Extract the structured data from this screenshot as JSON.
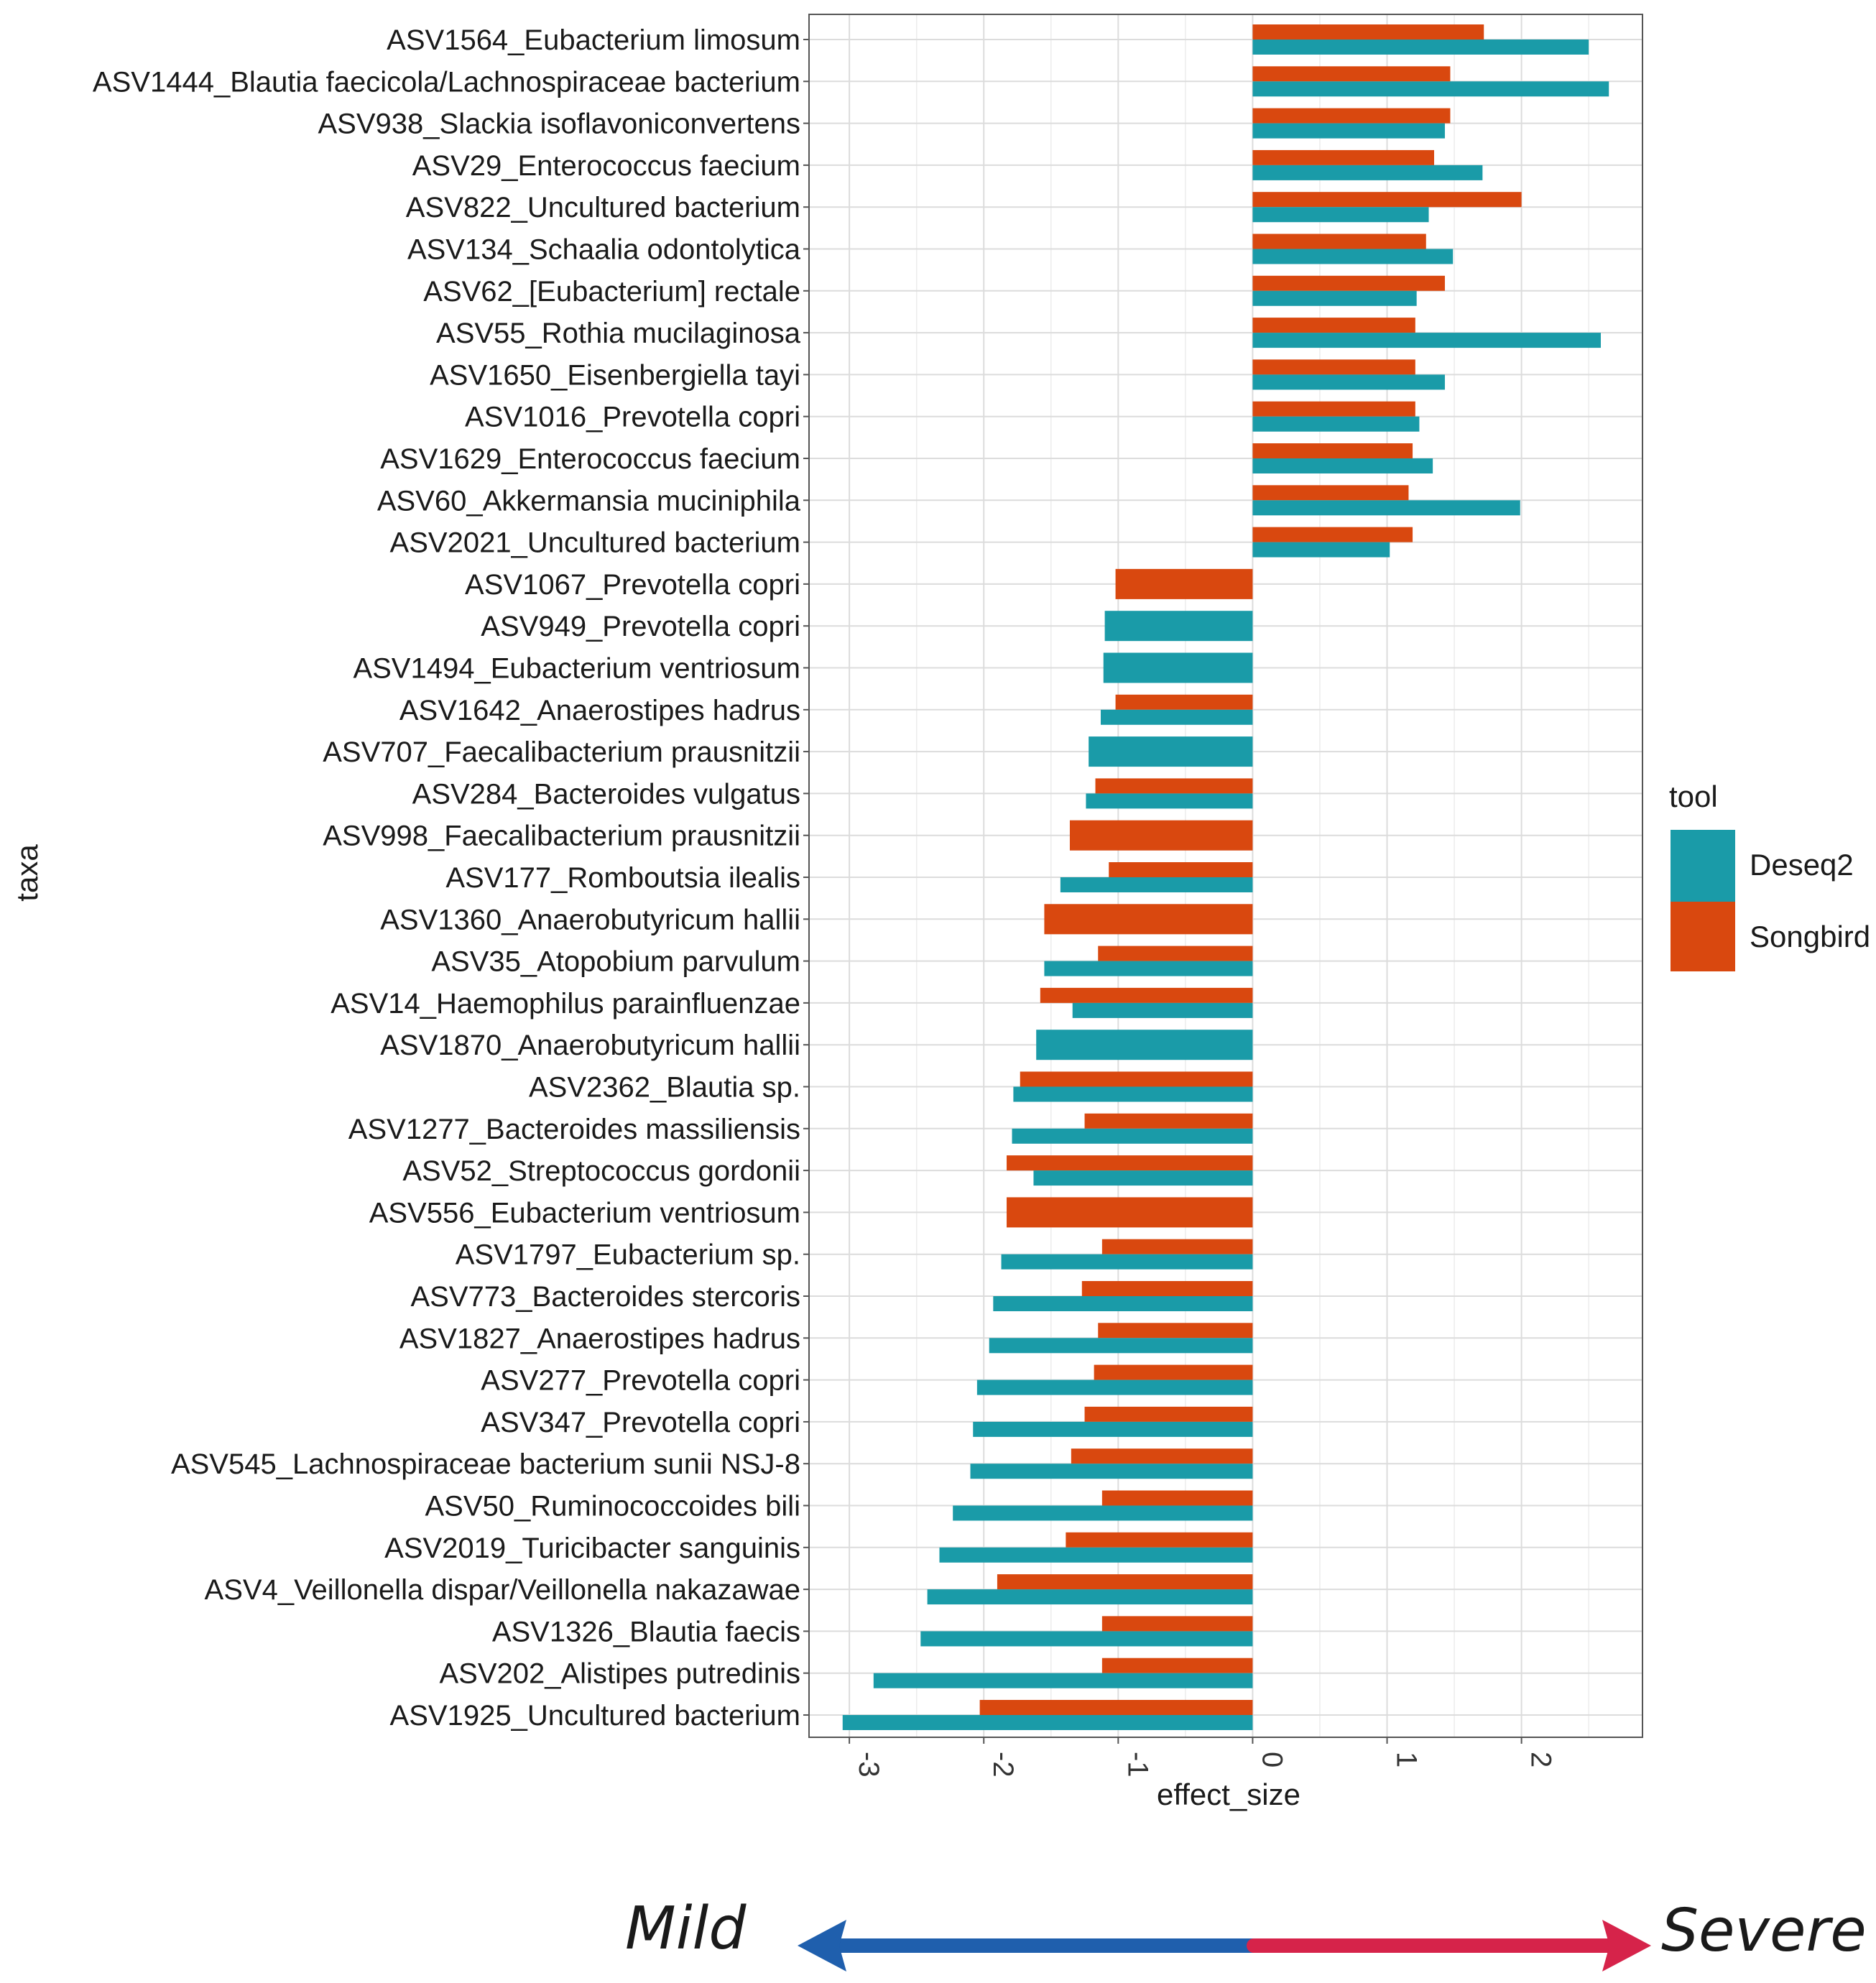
{
  "colors": {
    "deseq2": "#1a9ba8",
    "songbird": "#d9480f",
    "mild_arrow": "#1f5fad",
    "severe_arrow": "#d6234a"
  },
  "chart_data": {
    "type": "bar",
    "orientation": "horizontal",
    "xlabel": "effect_size",
    "ylabel": "taxa",
    "xlim": [
      -3.3,
      2.9
    ],
    "xticks": [
      -3,
      -2,
      -1,
      0,
      1,
      2
    ],
    "grid": true,
    "legend": {
      "title": "tool",
      "position": "right",
      "entries": [
        "Deseq2",
        "Songbird"
      ]
    },
    "categories": [
      "ASV1564_Eubacterium limosum",
      "ASV1444_Blautia faecicola/Lachnospiraceae bacterium",
      "ASV938_Slackia isoflavoniconvertens",
      "ASV29_Enterococcus faecium",
      "ASV822_Uncultured bacterium",
      "ASV134_Schaalia odontolytica",
      "ASV62_[Eubacterium] rectale",
      "ASV55_Rothia mucilaginosa",
      "ASV1650_Eisenbergiella tayi",
      "ASV1016_Prevotella copri",
      "ASV1629_Enterococcus faecium",
      "ASV60_Akkermansia muciniphila",
      "ASV2021_Uncultured bacterium",
      "ASV1067_Prevotella copri",
      "ASV949_Prevotella copri",
      "ASV1494_Eubacterium ventriosum",
      "ASV1642_Anaerostipes hadrus",
      "ASV707_Faecalibacterium prausnitzii",
      "ASV284_Bacteroides vulgatus",
      "ASV998_Faecalibacterium prausnitzii",
      "ASV177_Romboutsia ilealis",
      "ASV1360_Anaerobutyricum hallii",
      "ASV35_Atopobium parvulum",
      "ASV14_Haemophilus parainfluenzae",
      "ASV1870_Anaerobutyricum hallii",
      "ASV2362_Blautia sp.",
      "ASV1277_Bacteroides massiliensis",
      "ASV52_Streptococcus gordonii",
      "ASV556_Eubacterium ventriosum",
      "ASV1797_Eubacterium sp.",
      "ASV773_Bacteroides stercoris",
      "ASV1827_Anaerostipes hadrus",
      "ASV277_Prevotella copri",
      "ASV347_Prevotella copri",
      "ASV545_Lachnospiraceae bacterium sunii NSJ-8",
      "ASV50_Ruminococcoides bili",
      "ASV2019_Turicibacter sanguinis",
      "ASV4_Veillonella dispar/Veillonella nakazawae",
      "ASV1326_Blautia faecis",
      "ASV202_Alistipes putredinis",
      "ASV1925_Uncultured bacterium"
    ],
    "series": [
      {
        "name": "Songbird",
        "values": [
          1.72,
          1.47,
          1.47,
          1.35,
          2.0,
          1.29,
          1.43,
          1.21,
          1.21,
          1.21,
          1.19,
          1.16,
          1.19,
          -1.02,
          null,
          null,
          -1.02,
          null,
          -1.17,
          -1.36,
          -1.07,
          -1.55,
          -1.15,
          -1.58,
          null,
          -1.73,
          -1.25,
          -1.83,
          -1.83,
          -1.12,
          -1.27,
          -1.15,
          -1.18,
          -1.25,
          -1.35,
          -1.12,
          -1.39,
          -1.9,
          -1.12,
          -1.12,
          -2.03
        ]
      },
      {
        "name": "Deseq2",
        "values": [
          2.5,
          2.65,
          1.43,
          1.71,
          1.31,
          1.49,
          1.22,
          2.59,
          1.43,
          1.24,
          1.34,
          1.99,
          1.02,
          null,
          -1.1,
          -1.11,
          -1.13,
          -1.22,
          -1.24,
          null,
          -1.43,
          null,
          -1.55,
          -1.34,
          -1.61,
          -1.78,
          -1.79,
          -1.63,
          null,
          -1.87,
          -1.93,
          -1.96,
          -2.05,
          -2.08,
          -2.1,
          -2.23,
          -2.33,
          -2.42,
          -2.47,
          -2.82,
          -3.05
        ]
      }
    ]
  },
  "severity_arrow": {
    "left_label": "Mild",
    "right_label": "Severe"
  }
}
